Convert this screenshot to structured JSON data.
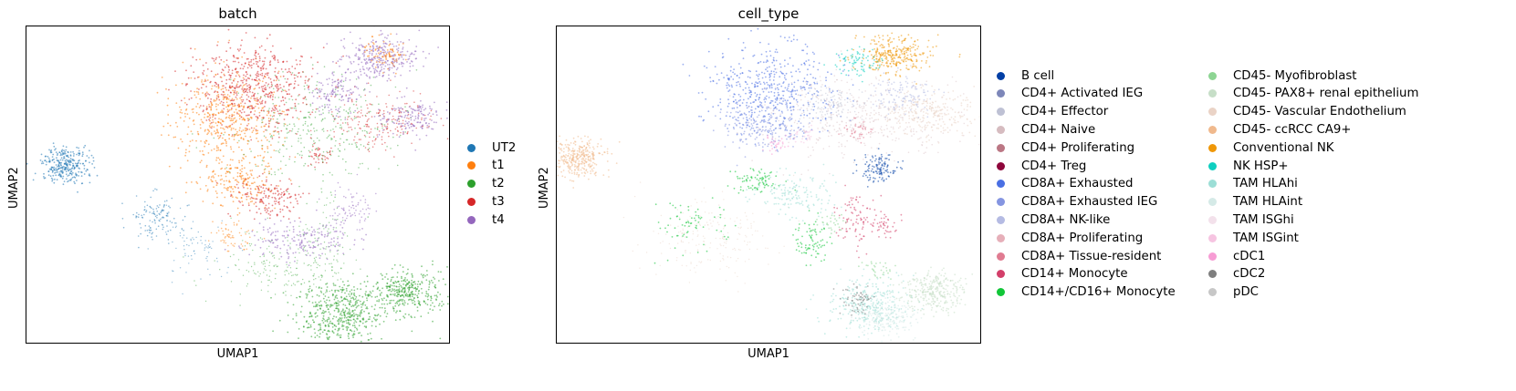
{
  "chart_data": [
    {
      "type": "scatter",
      "title": "batch",
      "xlabel": "UMAP1",
      "ylabel": "UMAP2",
      "grid": false,
      "legend_position": "right",
      "series": [
        {
          "name": "UT2",
          "color": "#1f77b4"
        },
        {
          "name": "t1",
          "color": "#ff7f0e"
        },
        {
          "name": "t2",
          "color": "#2ca02c"
        },
        {
          "name": "t3",
          "color": "#d62728"
        },
        {
          "name": "t4",
          "color": "#9467bd"
        }
      ]
    },
    {
      "type": "scatter",
      "title": "cell_type",
      "xlabel": "UMAP1",
      "ylabel": "UMAP2",
      "grid": false,
      "legend_position": "right",
      "series": [
        {
          "name": "B cell",
          "color": "#023fa5"
        },
        {
          "name": "CD4+ Activated IEG",
          "color": "#7d87b9"
        },
        {
          "name": "CD4+ Effector",
          "color": "#bec1d4"
        },
        {
          "name": "CD4+ Naive",
          "color": "#d6bcc0"
        },
        {
          "name": "CD4+ Proliferating",
          "color": "#bb7784"
        },
        {
          "name": "CD4+ Treg",
          "color": "#8e063b"
        },
        {
          "name": "CD8A+ Exhausted",
          "color": "#4a6fe3"
        },
        {
          "name": "CD8A+ Exhausted IEG",
          "color": "#8595e1"
        },
        {
          "name": "CD8A+ NK-like",
          "color": "#b5bbe3"
        },
        {
          "name": "CD8A+ Proliferating",
          "color": "#e6afb9"
        },
        {
          "name": "CD8A+ Tissue-resident",
          "color": "#e07b91"
        },
        {
          "name": "CD14+ Monocyte",
          "color": "#d33f6a"
        },
        {
          "name": "CD14+/CD16+ Monocyte",
          "color": "#11c638"
        },
        {
          "name": "CD45- Myofibroblast",
          "color": "#8dd593"
        },
        {
          "name": "CD45- PAX8+ renal epithelium",
          "color": "#c6dec7"
        },
        {
          "name": "CD45- Vascular Endothelium",
          "color": "#ead3c6"
        },
        {
          "name": "CD45- ccRCC CA9+",
          "color": "#f0b98d"
        },
        {
          "name": "Conventional NK",
          "color": "#ef9708"
        },
        {
          "name": "NK HSP+",
          "color": "#0fcfc0"
        },
        {
          "name": "TAM HLAhi",
          "color": "#9cded6"
        },
        {
          "name": "TAM HLAint",
          "color": "#d5eae7"
        },
        {
          "name": "TAM ISGhi",
          "color": "#f3e1eb"
        },
        {
          "name": "TAM ISGint",
          "color": "#f6c4e1"
        },
        {
          "name": "cDC1",
          "color": "#f79cd4"
        },
        {
          "name": "cDC2",
          "color": "#7f7f7f"
        },
        {
          "name": "pDC",
          "color": "#c7c7c7"
        }
      ]
    }
  ]
}
